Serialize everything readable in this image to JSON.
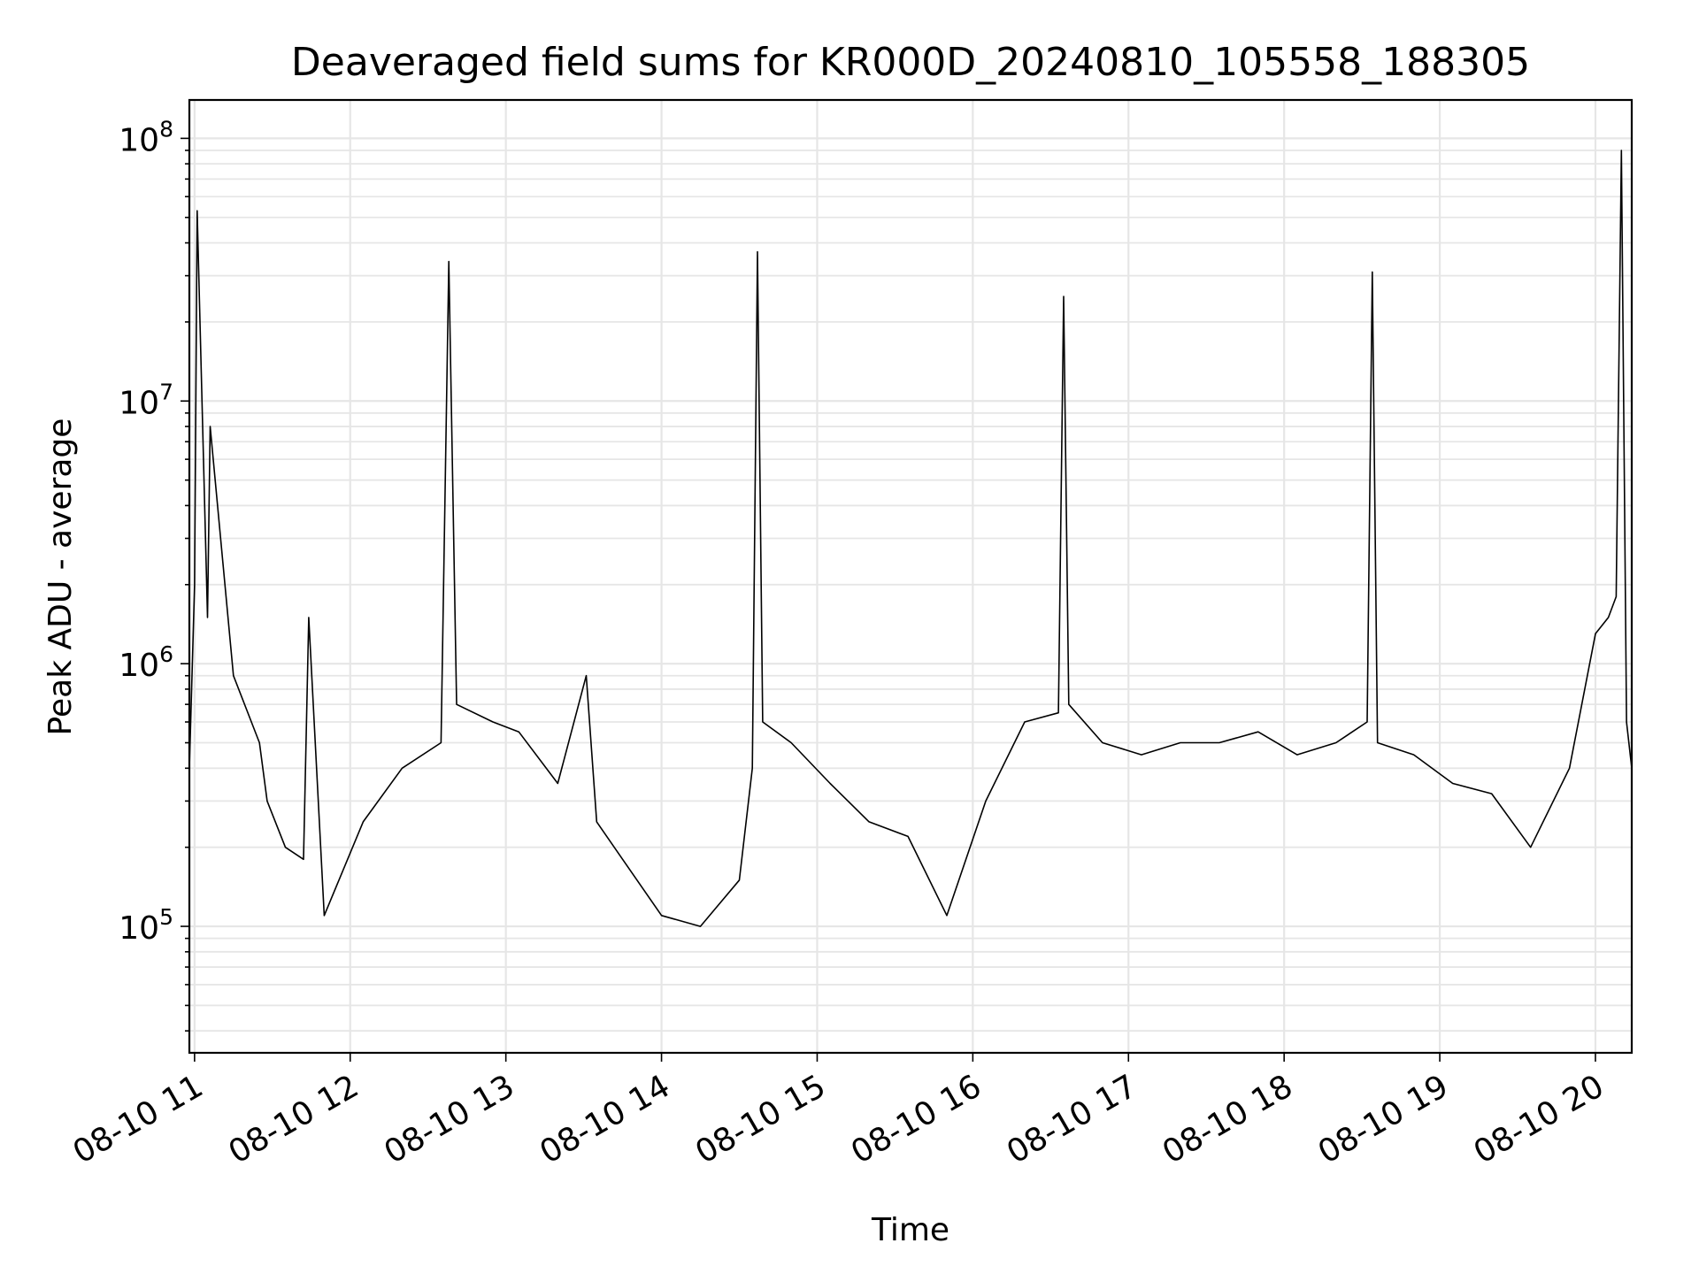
{
  "chart_data": {
    "type": "line",
    "title": "Deaveraged field sums for KR000D_20240810_105558_188305",
    "xlabel": "Time",
    "ylabel": "Peak ADU - average",
    "yscale": "log",
    "ylim": [
      33000,
      140000000
    ],
    "xlim": [
      "2024-08-10 10:58",
      "2024-08-10 20:14"
    ],
    "grid": true,
    "line_color": "#000000",
    "grid_color": "#e6e6e6",
    "x_ticks": [
      {
        "value": "2024-08-10 11:00",
        "label": "08-10 11"
      },
      {
        "value": "2024-08-10 12:00",
        "label": "08-10 12"
      },
      {
        "value": "2024-08-10 13:00",
        "label": "08-10 13"
      },
      {
        "value": "2024-08-10 14:00",
        "label": "08-10 14"
      },
      {
        "value": "2024-08-10 15:00",
        "label": "08-10 15"
      },
      {
        "value": "2024-08-10 16:00",
        "label": "08-10 16"
      },
      {
        "value": "2024-08-10 17:00",
        "label": "08-10 17"
      },
      {
        "value": "2024-08-10 18:00",
        "label": "08-10 18"
      },
      {
        "value": "2024-08-10 19:00",
        "label": "08-10 19"
      },
      {
        "value": "2024-08-10 20:00",
        "label": "08-10 20"
      }
    ],
    "y_ticks": [
      {
        "value": 100000,
        "base": "10",
        "exp": "5"
      },
      {
        "value": 1000000,
        "base": "10",
        "exp": "6"
      },
      {
        "value": 10000000,
        "base": "10",
        "exp": "7"
      },
      {
        "value": 100000000,
        "base": "10",
        "exp": "8"
      }
    ],
    "series": [
      {
        "x": [
          "2024-08-10 10:58",
          "2024-08-10 11:00",
          "2024-08-10 11:01",
          "2024-08-10 11:05",
          "2024-08-10 11:06",
          "2024-08-10 11:15",
          "2024-08-10 11:25",
          "2024-08-10 11:28",
          "2024-08-10 11:35",
          "2024-08-10 11:42",
          "2024-08-10 11:44",
          "2024-08-10 11:50",
          "2024-08-10 12:05",
          "2024-08-10 12:20",
          "2024-08-10 12:35",
          "2024-08-10 12:38",
          "2024-08-10 12:41",
          "2024-08-10 12:55",
          "2024-08-10 13:05",
          "2024-08-10 13:20",
          "2024-08-10 13:31",
          "2024-08-10 13:35",
          "2024-08-10 13:45",
          "2024-08-10 14:00",
          "2024-08-10 14:15",
          "2024-08-10 14:30",
          "2024-08-10 14:35",
          "2024-08-10 14:37",
          "2024-08-10 14:39",
          "2024-08-10 14:50",
          "2024-08-10 15:05",
          "2024-08-10 15:20",
          "2024-08-10 15:35",
          "2024-08-10 15:50",
          "2024-08-10 16:05",
          "2024-08-10 16:20",
          "2024-08-10 16:33",
          "2024-08-10 16:35",
          "2024-08-10 16:37",
          "2024-08-10 16:50",
          "2024-08-10 17:05",
          "2024-08-10 17:20",
          "2024-08-10 17:35",
          "2024-08-10 17:50",
          "2024-08-10 18:05",
          "2024-08-10 18:20",
          "2024-08-10 18:32",
          "2024-08-10 18:34",
          "2024-08-10 18:36",
          "2024-08-10 18:50",
          "2024-08-10 19:05",
          "2024-08-10 19:20",
          "2024-08-10 19:35",
          "2024-08-10 19:50",
          "2024-08-10 20:00",
          "2024-08-10 20:05",
          "2024-08-10 20:08",
          "2024-08-10 20:10",
          "2024-08-10 20:12",
          "2024-08-10 20:14"
        ],
        "y": [
          400000,
          2000000,
          53000000,
          1500000,
          8000000,
          900000,
          500000,
          300000,
          200000,
          180000,
          1500000,
          110000,
          250000,
          400000,
          500000,
          34000000,
          700000,
          600000,
          550000,
          350000,
          900000,
          250000,
          180000,
          110000,
          100000,
          150000,
          400000,
          37000000,
          600000,
          500000,
          350000,
          250000,
          220000,
          110000,
          300000,
          600000,
          650000,
          25000000,
          700000,
          500000,
          450000,
          500000,
          500000,
          550000,
          450000,
          500000,
          600000,
          31000000,
          500000,
          450000,
          350000,
          320000,
          200000,
          400000,
          1300000,
          1500000,
          1800000,
          90000000,
          600000,
          400000
        ]
      }
    ]
  }
}
